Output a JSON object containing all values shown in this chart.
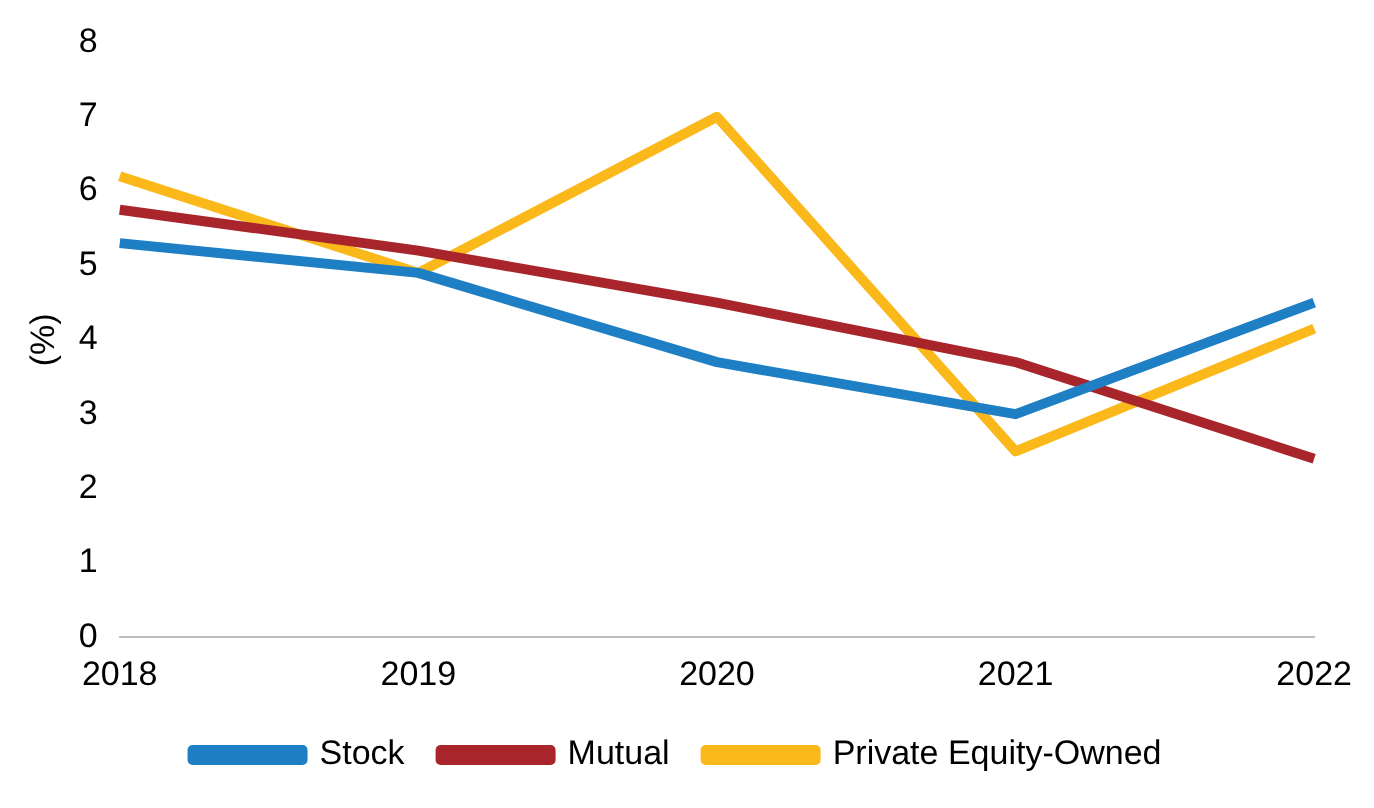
{
  "chart_data": {
    "type": "line",
    "ylabel": "(%)",
    "categories": [
      "2018",
      "2019",
      "2020",
      "2021",
      "2022"
    ],
    "series": [
      {
        "name": "Stock",
        "color": "#1f7fc4",
        "values": [
          5.3,
          4.9,
          3.7,
          3.0,
          4.5
        ]
      },
      {
        "name": "Mutual",
        "color": "#a8262b",
        "values": [
          5.75,
          5.2,
          4.5,
          3.7,
          2.4
        ]
      },
      {
        "name": "Private Equity-Owned",
        "color": "#fbb81a",
        "values": [
          6.2,
          4.9,
          7.0,
          2.5,
          4.15
        ]
      }
    ],
    "ylim": [
      0,
      8
    ],
    "yticks": [
      0,
      1,
      2,
      3,
      4,
      5,
      6,
      7,
      8
    ],
    "grid": false,
    "legend": "bottom",
    "marker": "none",
    "line_style": "solid"
  }
}
